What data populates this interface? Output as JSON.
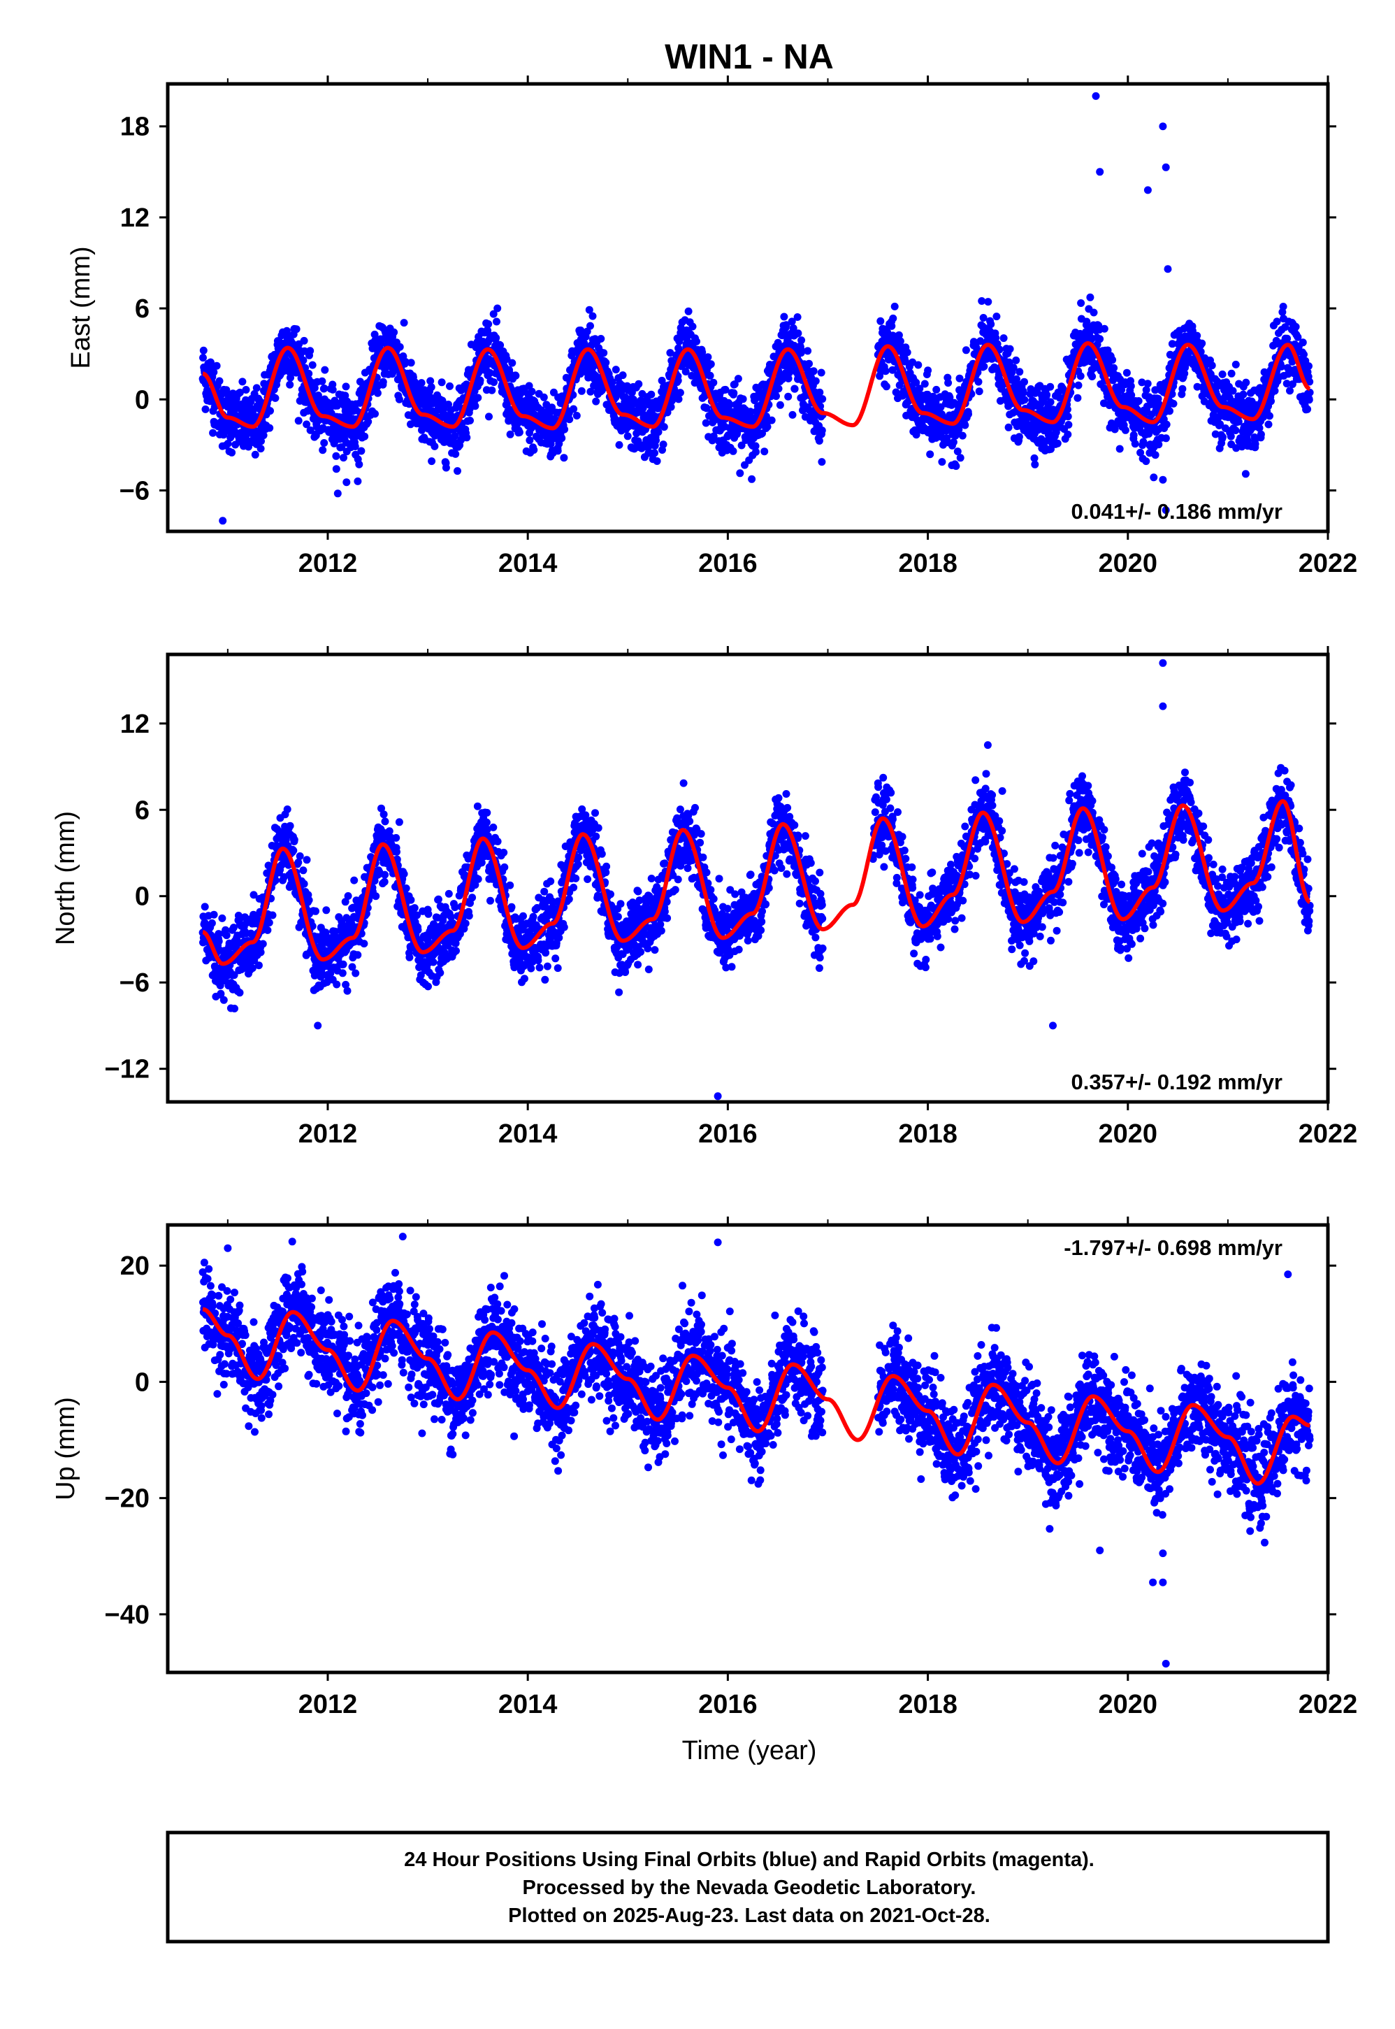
{
  "title": "WIN1 - NA",
  "chart_data": [
    {
      "type": "scatter",
      "id": "east",
      "ylabel": "East (mm)",
      "xlabel": "",
      "xlim": [
        2010.4,
        2022.0
      ],
      "ylim": [
        -8.7,
        20.8
      ],
      "xticks": [
        2012,
        2014,
        2016,
        2018,
        2020,
        2022
      ],
      "yticks": [
        18,
        12,
        6,
        0,
        -6
      ],
      "rate_text": "0.041+/- 0.186 mm/yr",
      "rate_position": "bottom-right",
      "grid": false,
      "series": [
        {
          "color": "#0000ff",
          "style": "points",
          "x_start": 2010.75,
          "x_end": 2021.82,
          "gaps": [
            [
              2016.95,
              2017.5
            ]
          ],
          "seasonal_amplitude": 2.6,
          "peak_phase": 0.6,
          "noise_sd": 1.1,
          "outliers": [
            [
              2010.95,
              -8.0
            ],
            [
              2012.1,
              -6.2
            ],
            [
              2012.3,
              -5.4
            ],
            [
              2019.68,
              20.0
            ],
            [
              2019.72,
              15.0
            ],
            [
              2020.2,
              13.8
            ],
            [
              2020.35,
              18.0
            ],
            [
              2020.38,
              15.3
            ],
            [
              2020.4,
              8.6
            ],
            [
              2020.35,
              -5.3
            ],
            [
              2020.38,
              -7.3
            ]
          ]
        },
        {
          "color": "#ff0000",
          "style": "line",
          "label": "",
          "x": [
            2010.75,
            2011.0,
            2011.25,
            2011.6,
            2011.95,
            2012.25,
            2012.6,
            2012.95,
            2013.25,
            2013.6,
            2013.95,
            2014.25,
            2014.6,
            2014.95,
            2015.25,
            2015.6,
            2015.95,
            2016.25,
            2016.6,
            2016.95,
            2017.25,
            2017.6,
            2017.95,
            2018.25,
            2018.6,
            2018.95,
            2019.25,
            2019.6,
            2019.95,
            2020.25,
            2020.6,
            2020.95,
            2021.25,
            2021.6,
            2021.82
          ],
          "y": [
            1.7,
            -1.2,
            -1.8,
            3.4,
            -1.1,
            -1.8,
            3.4,
            -1.0,
            -1.8,
            3.3,
            -1.1,
            -1.9,
            3.3,
            -1.0,
            -1.8,
            3.3,
            -1.2,
            -1.8,
            3.3,
            -0.9,
            -1.7,
            3.5,
            -0.9,
            -1.6,
            3.6,
            -0.7,
            -1.5,
            3.7,
            -0.5,
            -1.5,
            3.6,
            -0.5,
            -1.3,
            3.6,
            0.7
          ]
        }
      ]
    },
    {
      "type": "scatter",
      "id": "north",
      "ylabel": "North (mm)",
      "xlabel": "",
      "xlim": [
        2010.4,
        2022.0
      ],
      "ylim": [
        -14.3,
        16.8
      ],
      "xticks": [
        2012,
        2014,
        2016,
        2018,
        2020,
        2022
      ],
      "yticks": [
        12,
        6,
        0,
        -6,
        -12
      ],
      "rate_text": "0.357+/- 0.192 mm/yr",
      "rate_position": "bottom-right",
      "grid": false,
      "series": [
        {
          "color": "#0000ff",
          "style": "points",
          "x_start": 2010.75,
          "x_end": 2021.82,
          "gaps": [
            [
              2016.95,
              2017.45
            ]
          ],
          "seasonal_amplitude": 3.8,
          "peak_phase": 0.55,
          "noise_sd": 1.2,
          "outliers": [
            [
              2011.9,
              -9.0
            ],
            [
              2015.9,
              -13.9
            ],
            [
              2019.25,
              -9.0
            ],
            [
              2020.35,
              16.2
            ],
            [
              2020.35,
              13.2
            ],
            [
              2018.6,
              10.5
            ]
          ]
        },
        {
          "color": "#ff0000",
          "style": "line",
          "label": "",
          "x": [
            2010.75,
            2010.95,
            2011.25,
            2011.55,
            2011.95,
            2012.25,
            2012.55,
            2012.95,
            2013.25,
            2013.55,
            2013.95,
            2014.25,
            2014.55,
            2014.95,
            2015.25,
            2015.55,
            2015.95,
            2016.25,
            2016.55,
            2016.95,
            2017.25,
            2017.55,
            2017.95,
            2018.25,
            2018.55,
            2018.95,
            2019.25,
            2019.55,
            2019.95,
            2020.25,
            2020.55,
            2020.95,
            2021.25,
            2021.55,
            2021.82
          ],
          "y": [
            -2.5,
            -4.7,
            -3.2,
            3.3,
            -4.4,
            -2.9,
            3.6,
            -3.9,
            -2.4,
            4.0,
            -3.6,
            -1.9,
            4.3,
            -3.1,
            -1.6,
            4.6,
            -2.9,
            -1.2,
            5.0,
            -2.3,
            -0.6,
            5.4,
            -2.1,
            0.1,
            5.8,
            -1.8,
            0.3,
            6.1,
            -1.6,
            0.6,
            6.3,
            -1.0,
            0.9,
            6.6,
            -0.4
          ]
        }
      ]
    },
    {
      "type": "scatter",
      "id": "up",
      "ylabel": "Up (mm)",
      "xlabel": "Time (year)",
      "xlim": [
        2010.4,
        2022.0
      ],
      "ylim": [
        -50,
        27
      ],
      "xticks": [
        2012,
        2014,
        2016,
        2018,
        2020,
        2022
      ],
      "yticks": [
        20,
        0,
        -20,
        -40
      ],
      "rate_text": "-1.797+/- 0.698 mm/yr",
      "rate_position": "top-right",
      "grid": false,
      "series": [
        {
          "color": "#0000ff",
          "style": "points",
          "x_start": 2010.75,
          "x_end": 2021.82,
          "gaps": [
            [
              2016.95,
              2017.5
            ]
          ],
          "seasonal_amplitude": 6.0,
          "peak_phase": 0.7,
          "noise_sd": 4.0,
          "outliers": [
            [
              2013.25,
              -12.5
            ],
            [
              2015.9,
              24.0
            ],
            [
              2020.38,
              -48.5
            ],
            [
              2020.25,
              -34.5
            ],
            [
              2020.35,
              -34.5
            ],
            [
              2019.72,
              -29.0
            ],
            [
              2020.35,
              -29.5
            ],
            [
              2021.6,
              18.5
            ],
            [
              2011.0,
              23.0
            ],
            [
              2012.75,
              25.0
            ]
          ]
        },
        {
          "color": "#ff0000",
          "style": "line",
          "label": "",
          "x": [
            2010.75,
            2011.0,
            2011.3,
            2011.65,
            2012.0,
            2012.3,
            2012.65,
            2013.0,
            2013.3,
            2013.65,
            2014.0,
            2014.3,
            2014.65,
            2015.0,
            2015.3,
            2015.65,
            2016.0,
            2016.3,
            2016.65,
            2017.0,
            2017.3,
            2017.65,
            2018.0,
            2018.3,
            2018.65,
            2019.0,
            2019.3,
            2019.65,
            2020.0,
            2020.3,
            2020.65,
            2021.0,
            2021.3,
            2021.65,
            2021.82
          ],
          "y": [
            12.5,
            8.0,
            0.5,
            12.0,
            5.5,
            -1.5,
            10.5,
            4.0,
            -3.0,
            8.5,
            2.0,
            -4.5,
            6.5,
            0.5,
            -6.5,
            4.5,
            -1.0,
            -8.5,
            3.0,
            -3.0,
            -10.0,
            1.0,
            -5.0,
            -12.5,
            -0.5,
            -7.0,
            -14.0,
            -2.5,
            -8.5,
            -15.5,
            -4.0,
            -9.5,
            -17.5,
            -6.0,
            -7.5
          ]
        }
      ]
    }
  ],
  "footer": {
    "line1": "24 Hour Positions Using Final Orbits (blue) and Rapid Orbits (magenta).",
    "line2": "Processed by the Nevada Geodetic Laboratory.",
    "line3": "Plotted on 2025-Aug-23. Last data on 2021-Oct-28."
  }
}
